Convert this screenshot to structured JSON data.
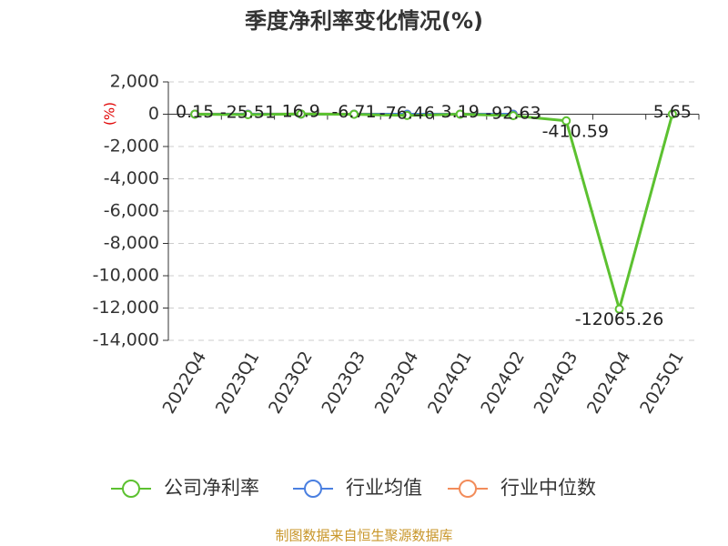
{
  "chart_data": {
    "type": "line",
    "title": "季度净利率变化情况(%)",
    "y_label": "(%)",
    "categories": [
      "2022Q4",
      "2023Q1",
      "2023Q2",
      "2023Q3",
      "2023Q4",
      "2024Q1",
      "2024Q2",
      "2024Q3",
      "2024Q4",
      "2025Q1"
    ],
    "series": [
      {
        "name": "公司净利率",
        "color": "#5cc130",
        "values": [
          0.15,
          -25.51,
          16.9,
          -6.71,
          -76.46,
          3.19,
          -92.63,
          -410.59,
          -12065.26,
          5.65
        ],
        "show_labels": true
      },
      {
        "name": "行业均值",
        "color": "#4a7fe0",
        "values": [
          3,
          2,
          4,
          2,
          1,
          2,
          1,
          null,
          null,
          null
        ],
        "show_labels": false
      },
      {
        "name": "行业中位数",
        "color": "#f28c5a",
        "values": [
          5,
          4,
          5,
          4,
          3,
          4,
          3,
          null,
          null,
          null
        ],
        "show_labels": false
      }
    ],
    "ylim": [
      -14000,
      2000
    ],
    "yticks": [
      {
        "value": -14000,
        "label": "-14,000"
      },
      {
        "value": -12000,
        "label": "-12,000"
      },
      {
        "value": -10000,
        "label": "-10,000"
      },
      {
        "value": -8000,
        "label": "-8,000"
      },
      {
        "value": -6000,
        "label": "-6,000"
      },
      {
        "value": -4000,
        "label": "-4,000"
      },
      {
        "value": -2000,
        "label": "-2,000"
      },
      0,
      {
        "value": 2000,
        "label": "2,000"
      }
    ],
    "grid": true,
    "source": "制图数据来自恒生聚源数据库"
  }
}
